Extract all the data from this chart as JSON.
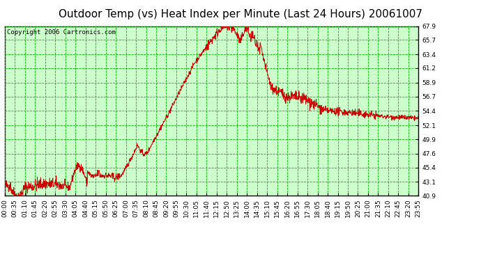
{
  "title": "Outdoor Temp (vs) Heat Index per Minute (Last 24 Hours) 20061007",
  "copyright": "Copyright 2006 Cartronics.com",
  "background_color": "#ffffff",
  "plot_bg_color": "#ccffcc",
  "line_color": "#cc0000",
  "grid_major_color": "#00bb00",
  "grid_minor_color": "#88dd88",
  "yticks": [
    40.9,
    43.1,
    45.4,
    47.6,
    49.9,
    52.1,
    54.4,
    56.7,
    58.9,
    61.2,
    63.4,
    65.7,
    67.9
  ],
  "ymin": 40.9,
  "ymax": 67.9,
  "xtick_labels": [
    "00:00",
    "00:35",
    "01:10",
    "01:45",
    "02:20",
    "02:55",
    "03:30",
    "04:05",
    "04:40",
    "05:15",
    "05:50",
    "06:25",
    "07:00",
    "07:35",
    "08:10",
    "08:45",
    "09:20",
    "09:55",
    "10:30",
    "11:05",
    "11:40",
    "12:15",
    "12:50",
    "13:25",
    "14:00",
    "14:35",
    "15:10",
    "15:45",
    "16:20",
    "16:55",
    "17:30",
    "18:05",
    "18:40",
    "19:15",
    "19:50",
    "20:25",
    "21:00",
    "21:35",
    "22:10",
    "22:45",
    "23:20",
    "23:55"
  ],
  "n_points": 1440,
  "title_fontsize": 11,
  "tick_fontsize": 6.5,
  "copyright_fontsize": 6.5
}
